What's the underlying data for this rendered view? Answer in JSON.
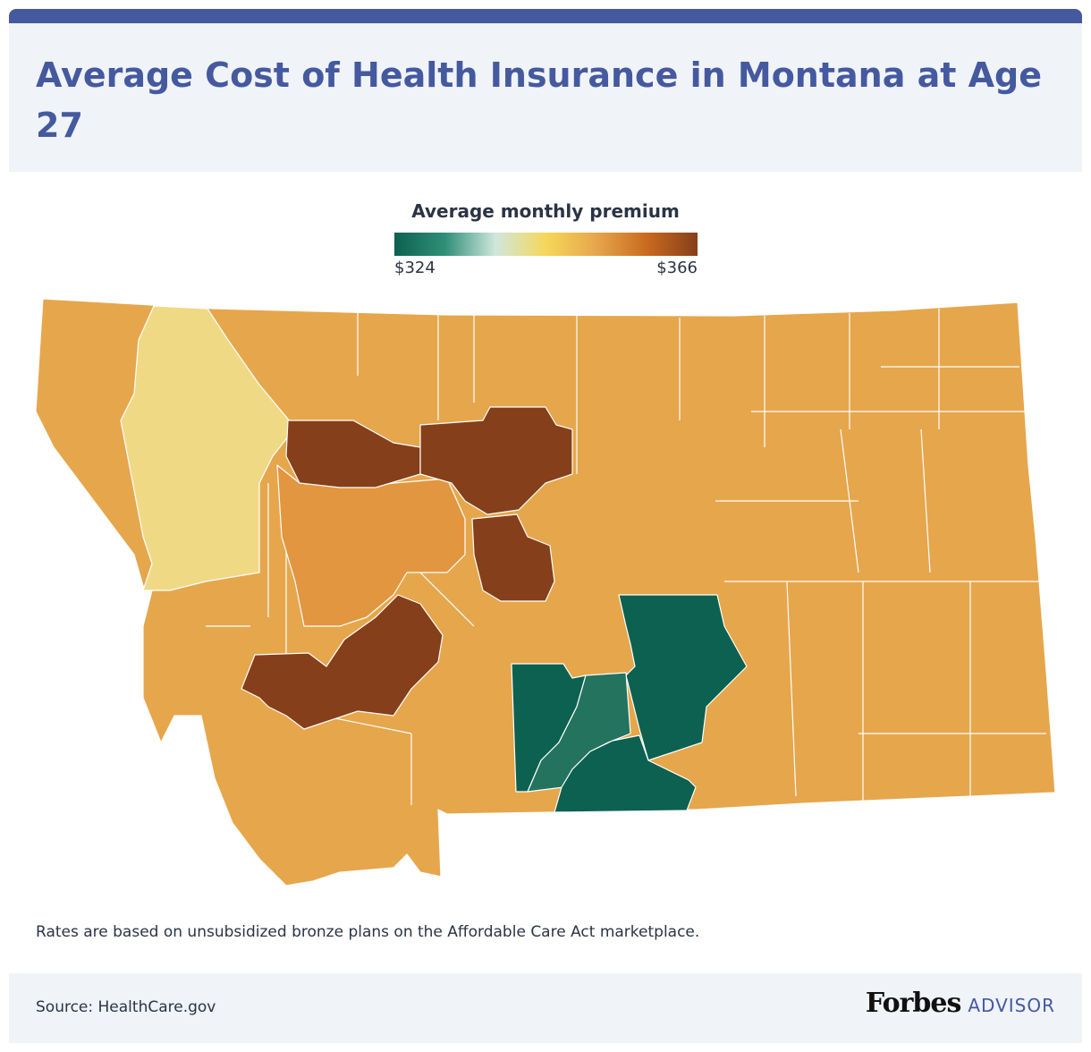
{
  "title": "Average Cost of Health Insurance in Montana at Age 27",
  "legend": {
    "title": "Average monthly premium",
    "min_label": "$324",
    "max_label": "$366",
    "min_value": 324,
    "max_value": 366,
    "gradient_colors": [
      "#0d6150",
      "#2f8f78",
      "#cfe7dd",
      "#f6d75a",
      "#e6a64c",
      "#c96a1e",
      "#863f1a"
    ]
  },
  "map": {
    "region": "Montana",
    "region_colors": {
      "light_yellow": "#f0d985",
      "orange": "#e6a64c",
      "dark_orange": "#e2963f",
      "brown": "#853f1a",
      "dark_teal": "#0d6150",
      "teal": "#23735f"
    }
  },
  "note": "Rates are based on unsubsidized bronze plans on the Affordable Care Act marketplace.",
  "source": "Source: HealthCare.gov",
  "brand": {
    "main": "Forbes",
    "sub": "ADVISOR"
  }
}
